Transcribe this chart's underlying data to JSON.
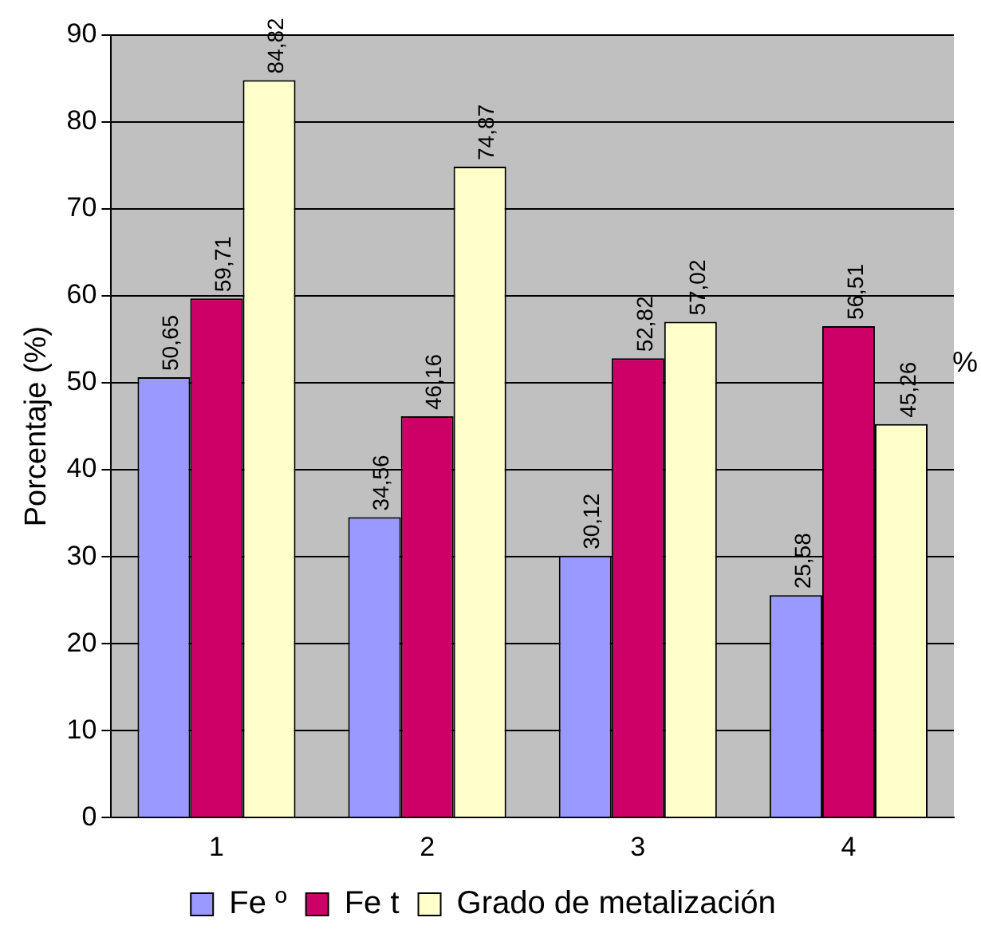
{
  "chart_data": {
    "type": "bar",
    "ylabel": "Porcentaje (%)",
    "categories": [
      "1",
      "2",
      "3",
      "4"
    ],
    "series": [
      {
        "name": "Fe º",
        "color": "#9999ff",
        "values": [
          50.65,
          34.56,
          30.12,
          25.58
        ],
        "value_labels": [
          "50,65",
          "34,56",
          "30,12",
          "25,58"
        ]
      },
      {
        "name": "Fe t",
        "color": "#cc0066",
        "values": [
          59.71,
          46.16,
          52.82,
          56.51
        ],
        "value_labels": [
          "59,71",
          "46,16",
          "52,82",
          "56,51"
        ]
      },
      {
        "name": "Grado de metalización",
        "color": "#ffffcc",
        "values": [
          84.82,
          74.87,
          57.02,
          45.26
        ],
        "value_labels": [
          "84,82",
          "74,87",
          "57,02",
          "45,26"
        ]
      }
    ],
    "ylim": [
      0,
      90
    ],
    "yticks": [
      0,
      10,
      20,
      30,
      40,
      50,
      60,
      70,
      80,
      90
    ],
    "grid": "y",
    "legend": "bottom",
    "annotations": [
      "%"
    ]
  }
}
